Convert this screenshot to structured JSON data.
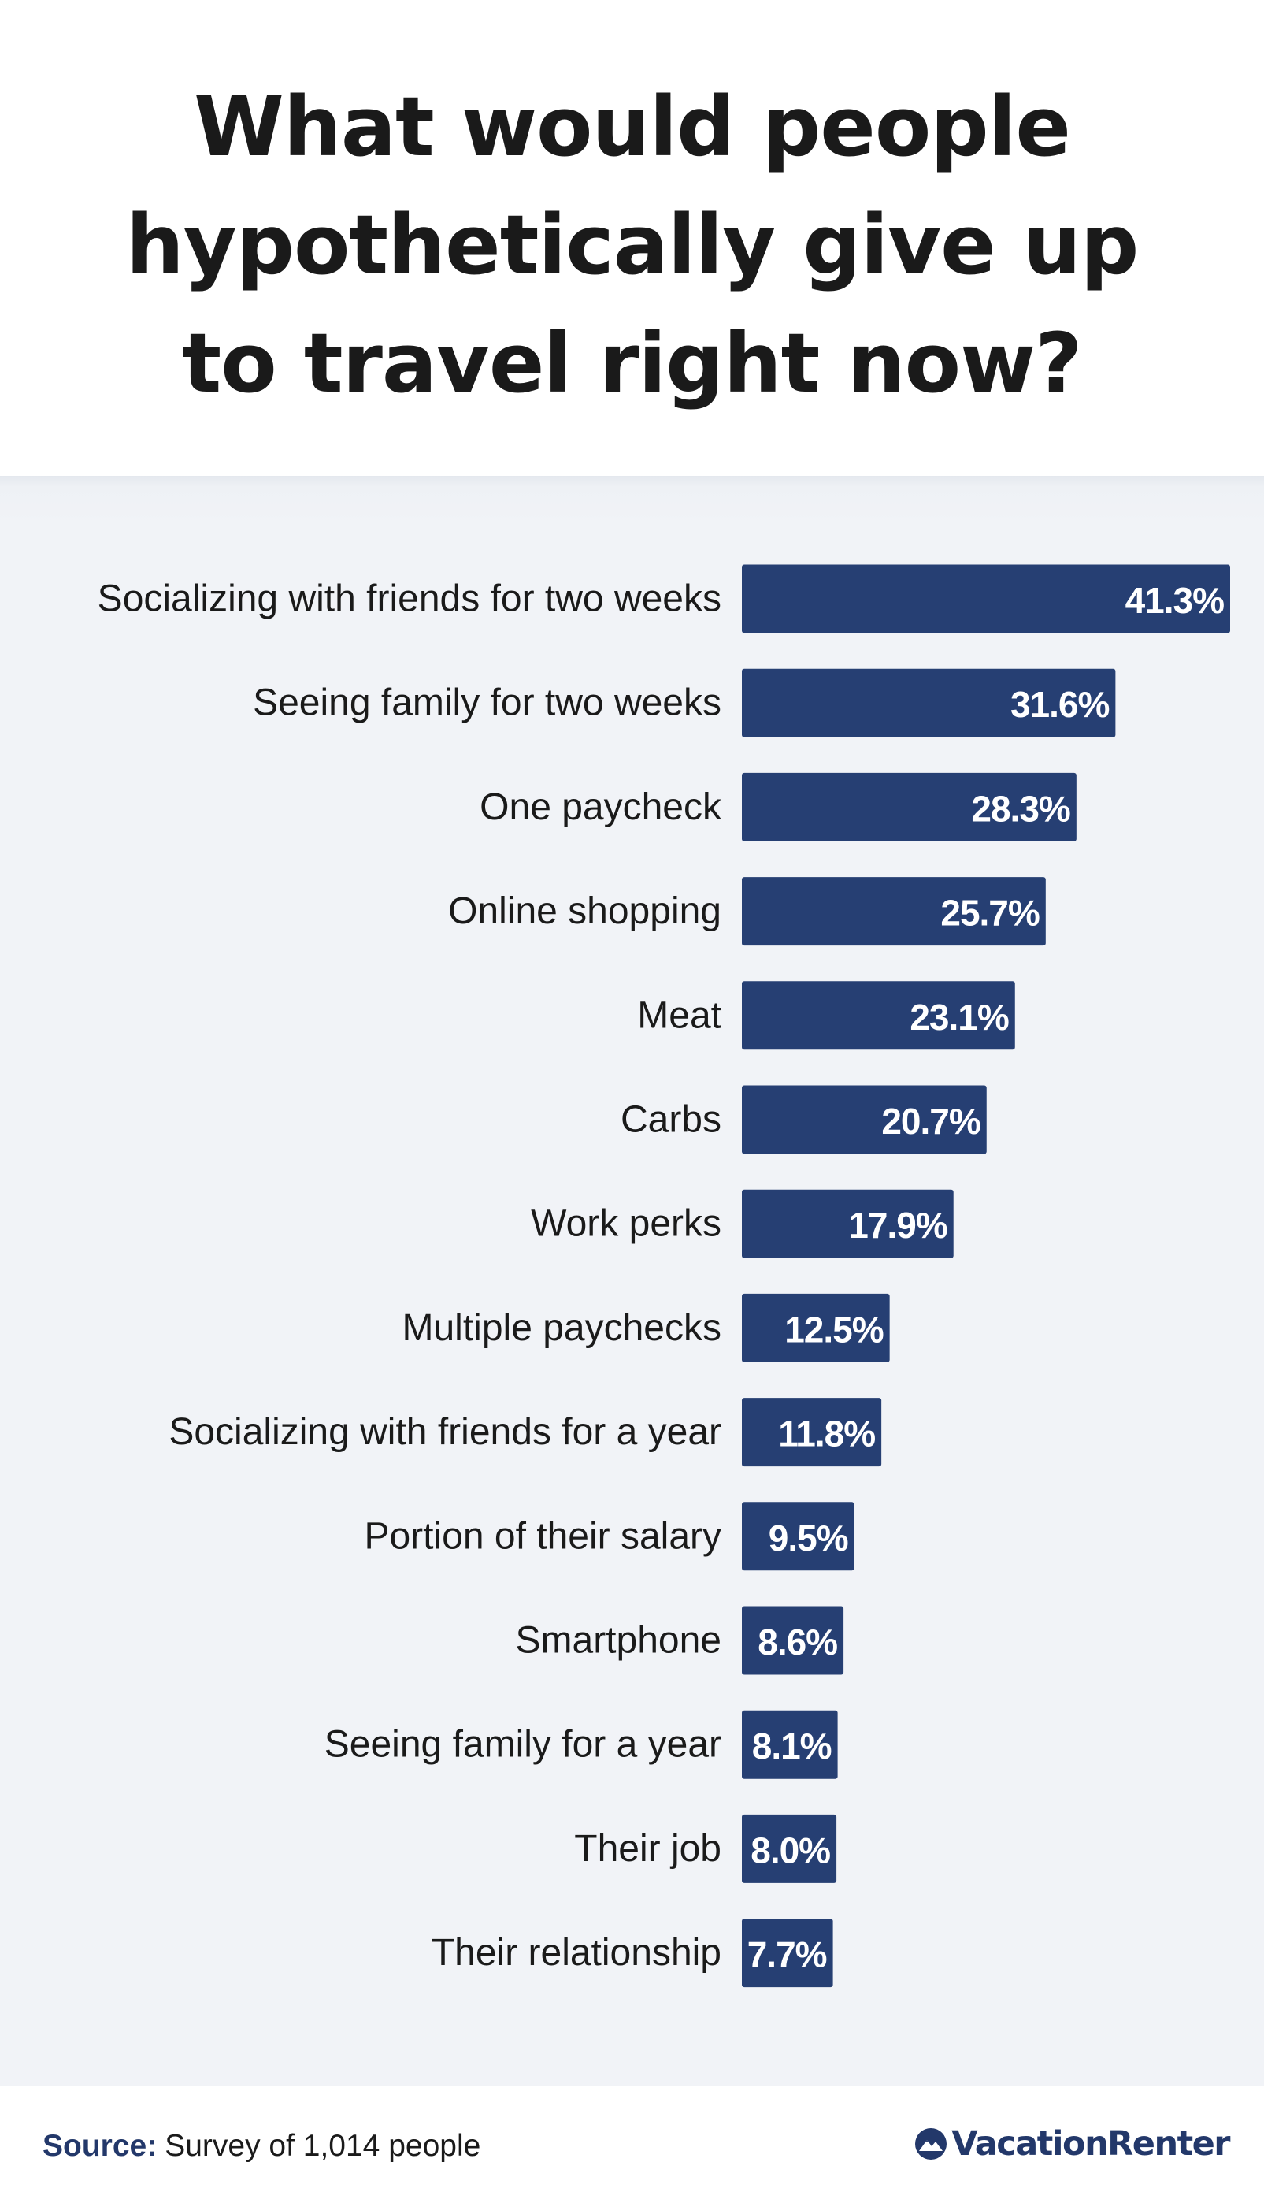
{
  "title_lines": [
    "What would people",
    "hypothetically give up",
    "to travel right now?"
  ],
  "source": {
    "label": "Source:",
    "text": "Survey of 1,014 people"
  },
  "brand": {
    "name": "VacationRenter",
    "logo_icon": "mountain-logo-icon"
  },
  "colors": {
    "bar": "#263f73",
    "bar_label": "#ffffff",
    "category_label": "#1a1a1a",
    "panel_background": "#f1f3f7",
    "brand": "#23386a"
  },
  "chart_data": {
    "type": "bar",
    "orientation": "horizontal",
    "title": "What would people hypothetically give up to travel right now?",
    "xlabel": "",
    "ylabel": "",
    "xlim": [
      0,
      41.3
    ],
    "grid": false,
    "legend": "none",
    "value_suffix": "%",
    "categories": [
      "Socializing with friends for two weeks",
      "Seeing family for two weeks",
      "One paycheck",
      "Online shopping",
      "Meat",
      "Carbs",
      "Work perks",
      "Multiple paychecks",
      "Socializing with friends for a year",
      "Portion of their salary",
      "Smartphone",
      "Seeing family for a year",
      "Their job",
      "Their relationship"
    ],
    "values": [
      41.3,
      31.6,
      28.3,
      25.7,
      23.1,
      20.7,
      17.9,
      12.5,
      11.8,
      9.5,
      8.6,
      8.1,
      8.0,
      7.7
    ],
    "value_labels": [
      "41.3%",
      "31.6%",
      "28.3%",
      "25.7%",
      "23.1%",
      "20.7%",
      "17.9%",
      "12.5%",
      "11.8%",
      "9.5%",
      "8.6%",
      "8.1%",
      "8.0%",
      "7.7%"
    ]
  }
}
